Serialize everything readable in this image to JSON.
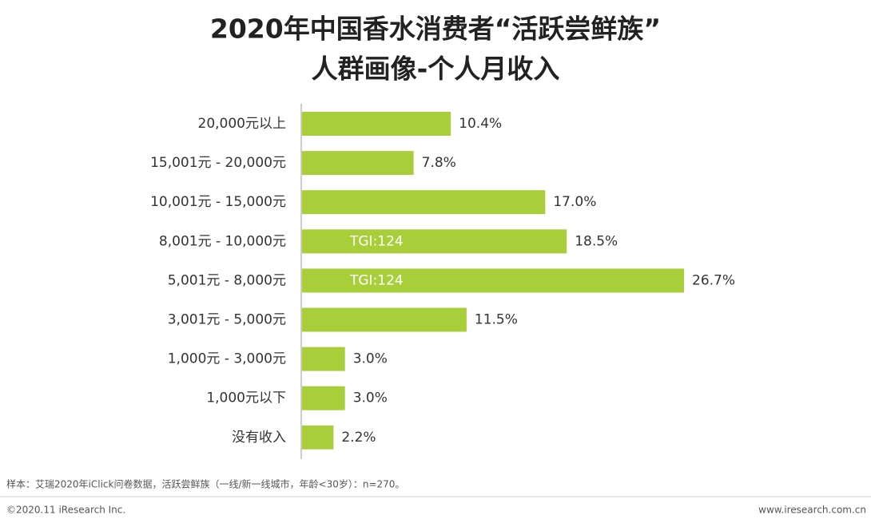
{
  "chart_data": {
    "type": "bar",
    "orientation": "horizontal",
    "title": [
      "2020年中国香水消费者“活跃尝鲜族”",
      "人群画像-个人月收入"
    ],
    "categories": [
      "20,000元以上",
      "15,001元 - 20,000元",
      "10,001元 - 15,000元",
      "8,001元 - 10,000元",
      "5,001元 - 8,000元",
      "3,001元 - 5,000元",
      "1,000元 - 3,000元",
      "1,000元以下",
      "没有收入"
    ],
    "values": [
      10.4,
      7.8,
      17.0,
      18.5,
      26.7,
      11.5,
      3.0,
      3.0,
      2.2
    ],
    "value_labels": [
      "10.4%",
      "7.8%",
      "17.0%",
      "18.5%",
      "26.7%",
      "11.5%",
      "3.0%",
      "3.0%",
      "2.2%"
    ],
    "bar_annotations": [
      null,
      null,
      null,
      "TGI:124",
      "TGI:124",
      null,
      null,
      null,
      null
    ],
    "color": "#a8cf3a",
    "notes": {
      "source": "样本：艾瑞2020年iClick问卷数据，活跃尝鲜族（一线/新一线城市，年龄<30岁）：n=270。",
      "copyright": "©2020.11 iResearch Inc.",
      "website": "www.iresearch.com.cn"
    }
  }
}
